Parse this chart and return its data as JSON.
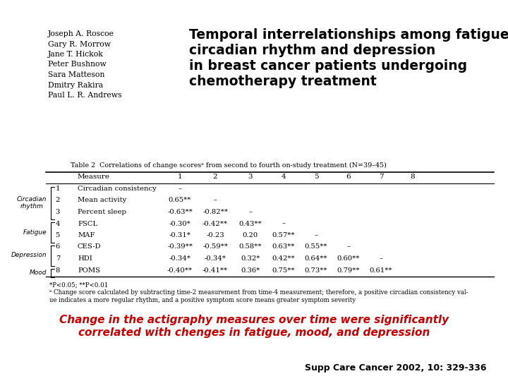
{
  "bg_color": "#ffffff",
  "authors": [
    "Joseph A. Roscoe",
    "Gary R. Morrow",
    "Jane T. Hickok",
    "Peter Bushnow",
    "Sara Matteson",
    "Dmitry Rakira",
    "Paul L. R. Andrews"
  ],
  "title_lines": [
    "Temporal interrelationships among fatigue,",
    "circadian rhythm and depression",
    "in breast cancer patients undergoing",
    "chemotherapy treatment"
  ],
  "table_caption": "Table 2  Correlations of change scoresᵃ from second to fourth on-study treatment (N=39–45)",
  "col_headers": [
    "Measure",
    "1",
    "2",
    "3",
    "4",
    "5",
    "6",
    "7",
    "8"
  ],
  "rows": [
    [
      "1",
      "Circadian consistency",
      "–",
      "",
      "",
      "",
      "",
      "",
      ""
    ],
    [
      "2",
      "Mean activity",
      "0.65**",
      "–",
      "",
      "",
      "",
      "",
      ""
    ],
    [
      "3",
      "Percent sleep",
      "-0.63**",
      "-0.82**",
      "–",
      "",
      "",
      "",
      ""
    ],
    [
      "4",
      "FSCL",
      "-0.30*",
      "-0.42**",
      "0.43**",
      "–",
      "",
      "",
      ""
    ],
    [
      "5",
      "MAF",
      "-0.31*",
      "-0.23",
      "0.20",
      "0.57**",
      "–",
      "",
      ""
    ],
    [
      "6",
      "CES-D",
      "-0.39**",
      "-0.59**",
      "0.58**",
      "0.63**",
      "0.55**",
      "–",
      ""
    ],
    [
      "7",
      "HDI",
      "-0.34*",
      "-0.34*",
      "0.32*",
      "0.42**",
      "0.64**",
      "0.60**",
      "–"
    ],
    [
      "8",
      "POMS",
      "-0.40**",
      "-0.41**",
      "0.36*",
      "0.75**",
      "0.73**",
      "0.79**",
      "0.61**"
    ]
  ],
  "group_labels": [
    {
      "label": "Circadian\nrhythm",
      "rows": [
        0,
        1,
        2
      ]
    },
    {
      "label": "Fatigue",
      "rows": [
        3,
        4
      ]
    },
    {
      "label": "Depression",
      "rows": [
        5,
        6
      ]
    },
    {
      "label": "Mood",
      "rows": [
        7
      ]
    }
  ],
  "footnote1": "*P<0.05; **P<0.01",
  "footnote2": "ᵃ Change score calculated by subtracting time-2 measurement from time-4 measurement; therefore, a positive circadian consistency val-",
  "footnote3": "ue indicates a more regular rhythm, and a positive symptom score means greater symptom severity",
  "highlight_text1": "Change in the actigraphy measures over time were significantly",
  "highlight_text2": "correlated with chenges in fatigue, mood, and depression",
  "highlight_color": "#cc0000",
  "citation": "Supp Care Cancer 2002, 10: 329-336"
}
